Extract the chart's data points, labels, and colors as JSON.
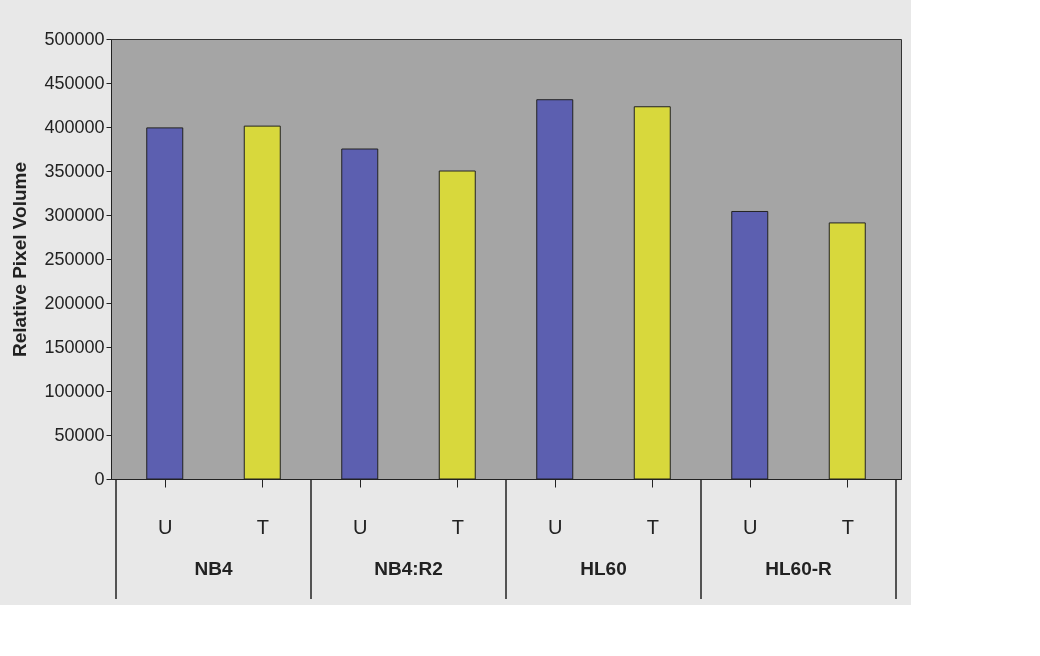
{
  "chart_data": {
    "type": "bar",
    "ylabel": "Relative Pixel Volume",
    "categories": [
      "U",
      "T",
      "U",
      "T",
      "U",
      "T",
      "U",
      "T"
    ],
    "values": [
      399000,
      401000,
      375000,
      350000,
      431000,
      423000,
      304000,
      291000
    ],
    "colors": [
      "#5c5fb0",
      "#d8d83c",
      "#5c5fb0",
      "#d8d83c",
      "#5c5fb0",
      "#d8d83c",
      "#5c5fb0",
      "#d8d83c"
    ],
    "ylim": [
      0,
      500000
    ],
    "yticks": [
      0,
      50000,
      100000,
      150000,
      200000,
      250000,
      300000,
      350000,
      400000,
      450000,
      500000
    ],
    "annotations": [
      "NB4",
      "NB4:R2",
      "HL60",
      "HL60-R"
    ]
  }
}
